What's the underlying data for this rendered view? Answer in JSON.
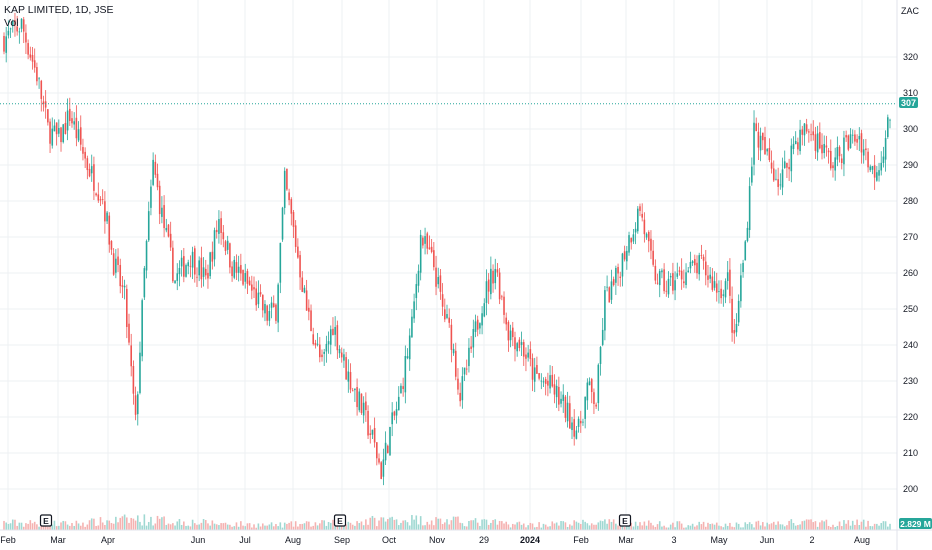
{
  "legend": {
    "title": "KAP LIMITED, 1D, JSE",
    "volume_label": "Vol"
  },
  "currency": "ZAC",
  "colors": {
    "up": "#26a69a",
    "down": "#ef5350",
    "up_vol": "#9fd8d2",
    "down_vol": "#f5b2b1",
    "grid": "#eef0f3",
    "axis_text": "#131722",
    "last_price_line": "#26a69a"
  },
  "chart_data": {
    "type": "candlestick",
    "title": "KAP LIMITED, 1D, JSE",
    "ylim": [
      192,
      332
    ],
    "y_ticks": [
      200,
      210,
      220,
      230,
      240,
      250,
      260,
      270,
      280,
      290,
      300,
      310,
      320
    ],
    "x_ticks": [
      {
        "label": "Feb",
        "bold": false
      },
      {
        "label": "Mar",
        "bold": false
      },
      {
        "label": "Apr",
        "bold": false
      },
      {
        "label": "Jun",
        "bold": false
      },
      {
        "label": "Jul",
        "bold": false
      },
      {
        "label": "Aug",
        "bold": false
      },
      {
        "label": "Sep",
        "bold": false
      },
      {
        "label": "Oct",
        "bold": false
      },
      {
        "label": "Nov",
        "bold": false
      },
      {
        "label": "29",
        "bold": false
      },
      {
        "label": "2024",
        "bold": true
      },
      {
        "label": "Feb",
        "bold": false
      },
      {
        "label": "Mar",
        "bold": false
      },
      {
        "label": "3",
        "bold": false
      },
      {
        "label": "May",
        "bold": false
      },
      {
        "label": "Jun",
        "bold": false
      },
      {
        "label": "2",
        "bold": false
      },
      {
        "label": "Aug",
        "bold": false
      }
    ],
    "last_price": 307,
    "last_price_label": "307",
    "volume_label": "2.829 M",
    "earnings_marker": "E",
    "earnings_marker_count": 3,
    "close_path": [
      [
        0,
        325
      ],
      [
        8,
        329
      ],
      [
        15,
        315
      ],
      [
        20,
        300
      ],
      [
        25,
        297
      ],
      [
        30,
        304
      ],
      [
        38,
        290
      ],
      [
        45,
        281
      ],
      [
        50,
        263
      ],
      [
        55,
        253
      ],
      [
        58,
        232
      ],
      [
        60,
        218
      ],
      [
        64,
        260
      ],
      [
        68,
        290
      ],
      [
        72,
        276
      ],
      [
        78,
        258
      ],
      [
        85,
        265
      ],
      [
        92,
        258
      ],
      [
        98,
        275
      ],
      [
        104,
        262
      ],
      [
        112,
        256
      ],
      [
        120,
        248
      ],
      [
        124,
        250
      ],
      [
        128,
        285
      ],
      [
        132,
        272
      ],
      [
        138,
        250
      ],
      [
        145,
        234
      ],
      [
        150,
        246
      ],
      [
        156,
        233
      ],
      [
        162,
        224
      ],
      [
        168,
        214
      ],
      [
        172,
        205
      ],
      [
        176,
        216
      ],
      [
        180,
        224
      ],
      [
        186,
        245
      ],
      [
        190,
        270
      ],
      [
        196,
        262
      ],
      [
        200,
        250
      ],
      [
        204,
        242
      ],
      [
        208,
        226
      ],
      [
        212,
        236
      ],
      [
        218,
        252
      ],
      [
        224,
        262
      ],
      [
        230,
        244
      ],
      [
        236,
        240
      ],
      [
        242,
        231
      ],
      [
        250,
        228
      ],
      [
        256,
        222
      ],
      [
        262,
        216
      ],
      [
        266,
        228
      ],
      [
        270,
        224
      ],
      [
        274,
        253
      ],
      [
        278,
        256
      ],
      [
        284,
        268
      ],
      [
        290,
        278
      ],
      [
        296,
        260
      ],
      [
        302,
        256
      ],
      [
        310,
        260
      ],
      [
        318,
        262
      ],
      [
        326,
        255
      ],
      [
        330,
        258
      ],
      [
        333,
        240
      ],
      [
        336,
        258
      ],
      [
        338,
        268
      ],
      [
        342,
        300
      ],
      [
        348,
        292
      ],
      [
        354,
        285
      ],
      [
        360,
        296
      ],
      [
        366,
        300
      ],
      [
        372,
        296
      ],
      [
        378,
        290
      ],
      [
        384,
        296
      ],
      [
        390,
        298
      ],
      [
        396,
        288
      ],
      [
        400,
        292
      ],
      [
        404,
        304
      ]
    ],
    "volume_path": [
      [
        0,
        0.3
      ],
      [
        30,
        0.25
      ],
      [
        60,
        0.45
      ],
      [
        90,
        0.3
      ],
      [
        120,
        0.2
      ],
      [
        150,
        0.28
      ],
      [
        180,
        0.45
      ],
      [
        210,
        0.35
      ],
      [
        240,
        0.22
      ],
      [
        270,
        0.3
      ],
      [
        300,
        0.25
      ],
      [
        330,
        0.2
      ],
      [
        360,
        0.3
      ],
      [
        390,
        0.28
      ],
      [
        404,
        0.25
      ]
    ]
  }
}
